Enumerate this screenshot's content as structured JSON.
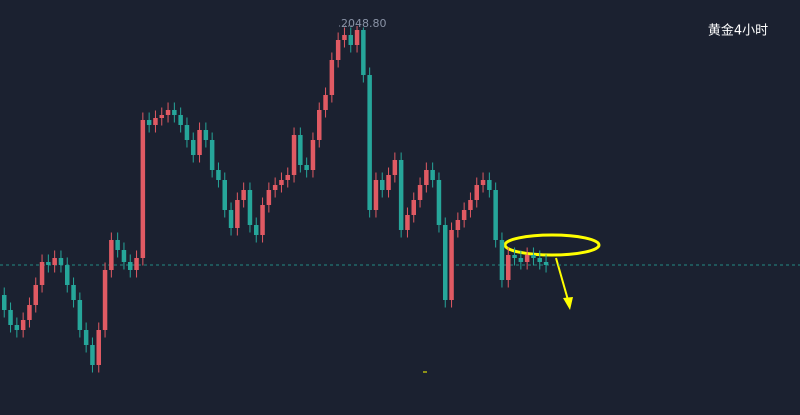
{
  "chart_data": {
    "type": "candlestick",
    "title": "黄金4小时",
    "ylim": [
      1971,
      2054
    ],
    "up_color": "#e05a63",
    "down_color": "#26a69a",
    "annotations": [
      {
        "text": "2048.80",
        "value": 2048.8
      }
    ],
    "open": [
      1995,
      1992,
      1989,
      1988,
      1990,
      1993,
      1997,
      2001.6,
      2001,
      2002.4,
      2001,
      1997,
      1994,
      1988,
      1985,
      1981,
      1988,
      2000,
      2006,
      2004,
      2001.6,
      2000,
      2002.4,
      2030,
      2029,
      2030.4,
      2031,
      2032,
      2031,
      2029,
      2026,
      2023,
      2028,
      2026,
      2020,
      2018,
      2012,
      2008.4,
      2014,
      2016,
      2009,
      2007,
      2013,
      2016,
      2017,
      2018,
      2019,
      2027,
      2021,
      2020,
      2026,
      2032,
      2035,
      2042,
      2046,
      2047,
      2045,
      2048,
      2039,
      2012,
      2018,
      2016,
      2019,
      2022,
      2008,
      2011,
      2014,
      2017,
      2020,
      2018,
      2009,
      1994,
      2008,
      2010,
      2012,
      2014,
      2017,
      2018,
      2016,
      2006,
      1998,
      2003,
      2002.4,
      2001.6,
      2003,
      2002.4,
      2001.6
    ],
    "high": [
      1996.5,
      1993.5,
      1990.5,
      1991.5,
      1994.5,
      1998.5,
      2003.1,
      2003.1,
      2003.9,
      2003.9,
      2002.5,
      1998.5,
      1995.5,
      1989.5,
      1986.5,
      1989.5,
      2001.5,
      2007.5,
      2007.5,
      2005.5,
      2003.1,
      2003.9,
      2031.5,
      2031.5,
      2031.9,
      2032.5,
      2033.5,
      2033.5,
      2032.5,
      2030.5,
      2027.5,
      2029.5,
      2029.5,
      2027.5,
      2021.5,
      2019.5,
      2013.5,
      2015.5,
      2017.5,
      2017.5,
      2010.5,
      2014.5,
      2017.5,
      2018.5,
      2019.5,
      2020.5,
      2028.5,
      2028.5,
      2022.5,
      2027.5,
      2033.5,
      2036.5,
      2043.5,
      2047.5,
      2048.5,
      2048.5,
      2048.8,
      2048.5,
      2040.5,
      2019.5,
      2019.5,
      2020.5,
      2023.5,
      2023.5,
      2012.5,
      2015.5,
      2018.5,
      2021.5,
      2021.5,
      2019.5,
      2010.5,
      2009.5,
      2011.5,
      2013.5,
      2015.5,
      2018.5,
      2019.5,
      2019.5,
      2017.5,
      2007.5,
      2004.5,
      2004.5,
      2003.9,
      2004.5,
      2004.5,
      2003.9,
      2003.1
    ],
    "low": [
      1990.5,
      1987.5,
      1986.5,
      1986.5,
      1988.5,
      1991.5,
      1995.5,
      1999.5,
      1999.5,
      1999.5,
      1995.5,
      1992.5,
      1986.5,
      1983.5,
      1979.5,
      1979.5,
      1986.5,
      1998.5,
      2002.5,
      2000.1,
      1998.5,
      1998.5,
      2000.9,
      2027.5,
      2027.5,
      2028.9,
      2029.5,
      2029.5,
      2027.5,
      2024.5,
      2021.5,
      2021.5,
      2024.5,
      2018.5,
      2016.5,
      2010.5,
      2006.9,
      2006.9,
      2012.5,
      2007.5,
      2005.5,
      2005.5,
      2011.5,
      2014.5,
      2015.5,
      2016.5,
      2017.5,
      2019.5,
      2018.5,
      2018.5,
      2024.5,
      2030.5,
      2033.5,
      2040.5,
      2044.5,
      2043.5,
      2043.5,
      2037.5,
      2010.5,
      2010.5,
      2014.5,
      2014.5,
      2017.5,
      2006.5,
      2006.5,
      2009.5,
      2012.5,
      2015.5,
      2016.5,
      2007.5,
      1992.5,
      1992.5,
      2006.5,
      2008.5,
      2010.5,
      2012.5,
      2015.5,
      2014.5,
      2004.5,
      1996.5,
      1996.5,
      2000.9,
      2000.1,
      2000.1,
      2000.9,
      2000.1,
      1999.5
    ],
    "close": [
      1992,
      1989,
      1988,
      1990,
      1993,
      1997,
      2001.6,
      2001,
      2002.4,
      2001,
      1997,
      1994,
      1988,
      1985,
      1981,
      1988,
      2000,
      2006,
      2004,
      2001.6,
      2000,
      2002.4,
      2030,
      2029,
      2030.4,
      2031,
      2032,
      2031,
      2029,
      2026,
      2023,
      2028,
      2026,
      2020,
      2018,
      2012,
      2008.4,
      2014,
      2016,
      2009,
      2007,
      2013,
      2016,
      2017,
      2018,
      2019,
      2027,
      2021,
      2020,
      2026,
      2032,
      2035,
      2042,
      2046,
      2047,
      2045,
      2048,
      2039,
      2012,
      2018,
      2016,
      2019,
      2022,
      2008,
      2011,
      2014,
      2017,
      2020,
      2018,
      2009,
      1994,
      2008,
      2010,
      2012,
      2014,
      2017,
      2018,
      2016,
      2006,
      1998,
      2003,
      2002.4,
      2001.6,
      2003,
      2002.4,
      2001.6,
      2001
    ]
  }
}
